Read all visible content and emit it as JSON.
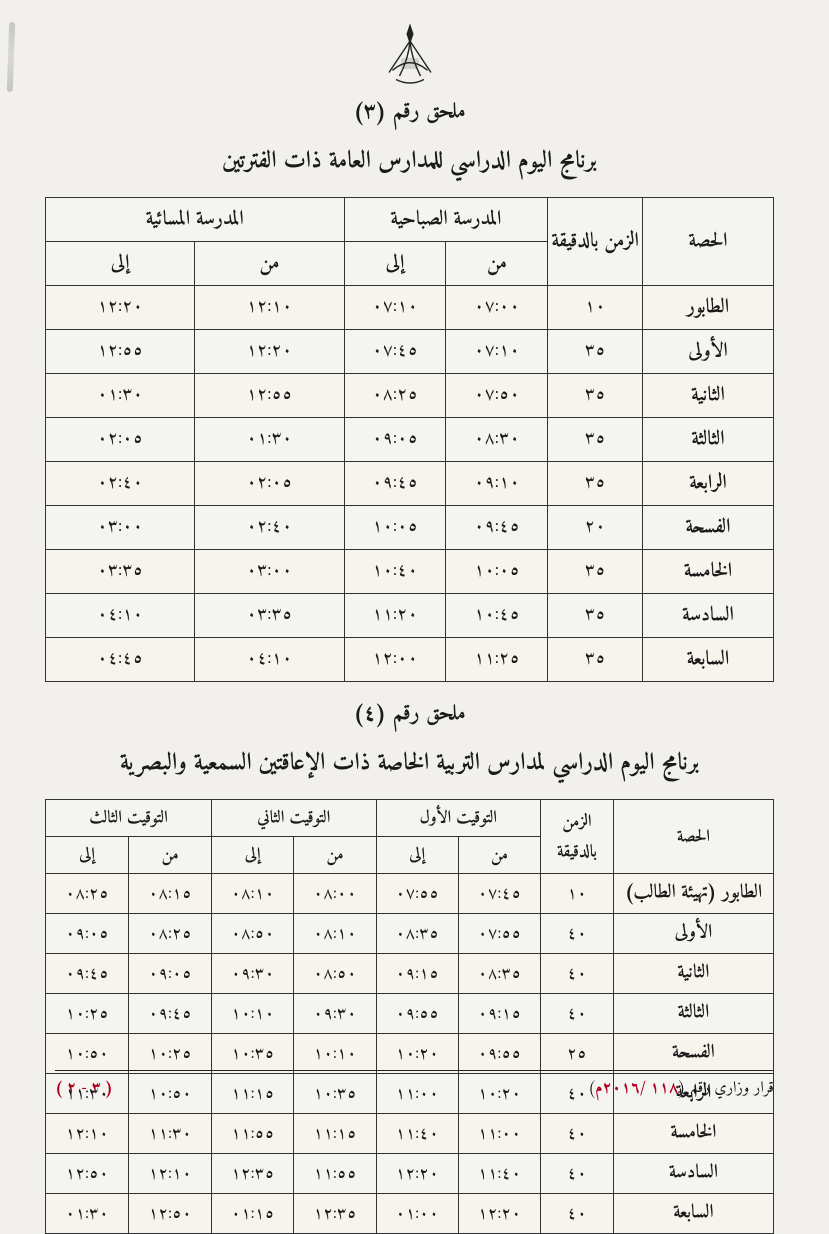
{
  "colors": {
    "page_bg": "#f1f0ed",
    "ink": "#1a1a1a",
    "accent_red": "#b00020",
    "border": "#333333"
  },
  "emblem_label": "شعار سلطنة عُمان",
  "appendix3": {
    "sup": "ملحق رقم (٣)",
    "title": "برنامج اليوم الدراسي للمدارس العامة ذات الفترتين",
    "header": {
      "period": "الحصة",
      "duration": "الزمن بالدقيقة",
      "morning": "المدرسة الصباحية",
      "evening": "المدرسة المسائية",
      "from": "من",
      "to": "إلى"
    },
    "rows": [
      {
        "p": "الطابور",
        "d": "١٠",
        "mf": "٠٧:٠٠",
        "mt": "٠٧:١٠",
        "ef": "١٢:١٠",
        "et": "١٢:٢٠"
      },
      {
        "p": "الأولى",
        "d": "٣٥",
        "mf": "٠٧:١٠",
        "mt": "٠٧:٤٥",
        "ef": "١٢:٢٠",
        "et": "١٢:٥٥"
      },
      {
        "p": "الثانية",
        "d": "٣٥",
        "mf": "٠٧:٥٠",
        "mt": "٠٨:٢٥",
        "ef": "١٢:٥٥",
        "et": "٠١:٣٠"
      },
      {
        "p": "الثالثة",
        "d": "٣٥",
        "mf": "٠٨:٣٠",
        "mt": "٠٩:٠٥",
        "ef": "٠١:٣٠",
        "et": "٠٢:٠٥"
      },
      {
        "p": "الرابعة",
        "d": "٣٥",
        "mf": "٠٩:١٠",
        "mt": "٠٩:٤٥",
        "ef": "٠٢:٠٥",
        "et": "٠٢:٤٠"
      },
      {
        "p": "الفسحة",
        "d": "٢٠",
        "mf": "٠٩:٤٥",
        "mt": "١٠:٠٥",
        "ef": "٠٢:٤٠",
        "et": "٠٣:٠٠"
      },
      {
        "p": "الخامسة",
        "d": "٣٥",
        "mf": "١٠:٠٥",
        "mt": "١٠:٤٠",
        "ef": "٠٣:٠٠",
        "et": "٠٣:٣٥"
      },
      {
        "p": "السادسة",
        "d": "٣٥",
        "mf": "١٠:٤٥",
        "mt": "١١:٢٠",
        "ef": "٠٣:٣٥",
        "et": "٠٤:١٠"
      },
      {
        "p": "السابعة",
        "d": "٣٥",
        "mf": "١١:٢٥",
        "mt": "١٢:٠٠",
        "ef": "٠٤:١٠",
        "et": "٠٤:٤٥"
      }
    ]
  },
  "appendix4": {
    "sup": "ملحق رقم (٤)",
    "title": "برنامج اليوم الدراسي لمدارس التربية الخاصة ذات الإعاقتين السمعية والبصرية",
    "header": {
      "period": "الحصة",
      "duration": "الزمن بالدقيقة",
      "t1": "التوقيت الأول",
      "t2": "التوقيت الثاني",
      "t3": "التوقيت الثالث",
      "from": "من",
      "to": "إلى"
    },
    "rows": [
      {
        "p": "الطابور (تهيئة الطالب)",
        "d": "١٠",
        "f1": "٠٧:٤٥",
        "t1": "٠٧:٥٥",
        "f2": "٠٨:٠٠",
        "t2": "٠٨:١٠",
        "f3": "٠٨:١٥",
        "t3": "٠٨:٢٥"
      },
      {
        "p": "الأولى",
        "d": "٤٠",
        "f1": "٠٧:٥٥",
        "t1": "٠٨:٣٥",
        "f2": "٠٨:١٠",
        "t2": "٠٨:٥٠",
        "f3": "٠٨:٢٥",
        "t3": "٠٩:٠٥"
      },
      {
        "p": "الثانية",
        "d": "٤٠",
        "f1": "٠٨:٣٥",
        "t1": "٠٩:١٥",
        "f2": "٠٨:٥٠",
        "t2": "٠٩:٣٠",
        "f3": "٠٩:٠٥",
        "t3": "٠٩:٤٥"
      },
      {
        "p": "الثالثة",
        "d": "٤٠",
        "f1": "٠٩:١٥",
        "t1": "٠٩:٥٥",
        "f2": "٠٩:٣٠",
        "t2": "١٠:١٠",
        "f3": "٠٩:٤٥",
        "t3": "١٠:٢٥"
      },
      {
        "p": "الفسحة",
        "d": "٢٥",
        "f1": "٠٩:٥٥",
        "t1": "١٠:٢٠",
        "f2": "١٠:١٠",
        "t2": "١٠:٣٥",
        "f3": "١٠:٢٥",
        "t3": "١٠:٥٠"
      },
      {
        "p": "الرابعة",
        "d": "٤٠",
        "f1": "١٠:٢٠",
        "t1": "١١:٠٠",
        "f2": "١٠:٣٥",
        "t2": "١١:١٥",
        "f3": "١٠:٥٠",
        "t3": "١١:٣٠"
      },
      {
        "p": "الخامسة",
        "d": "٤٠",
        "f1": "١١:٠٠",
        "t1": "١١:٤٠",
        "f2": "١١:١٥",
        "t2": "١١:٥٥",
        "f3": "١١:٣٠",
        "t3": "١٢:١٠"
      },
      {
        "p": "السادسة",
        "d": "٤٠",
        "f1": "١١:٤٠",
        "t1": "١٢:٢٠",
        "f2": "١١:٥٥",
        "t2": "١٢:٣٥",
        "f3": "١٢:١٠",
        "t3": "١٢:٥٠"
      },
      {
        "p": "السابعة",
        "d": "٤٠",
        "f1": "١٢:٢٠",
        "t1": "٠١:٠٠",
        "f2": "١٢:٣٥",
        "t2": "٠١:١٥",
        "f3": "١٢:٥٠",
        "t3": "٠١:٣٠"
      }
    ]
  },
  "footer": {
    "decree_prefix": "قرار وزاري رقم (",
    "decree_number": "١١٨ /٢٠١٦م",
    "decree_suffix": ")",
    "page": "( ٣ - ٢ )"
  }
}
